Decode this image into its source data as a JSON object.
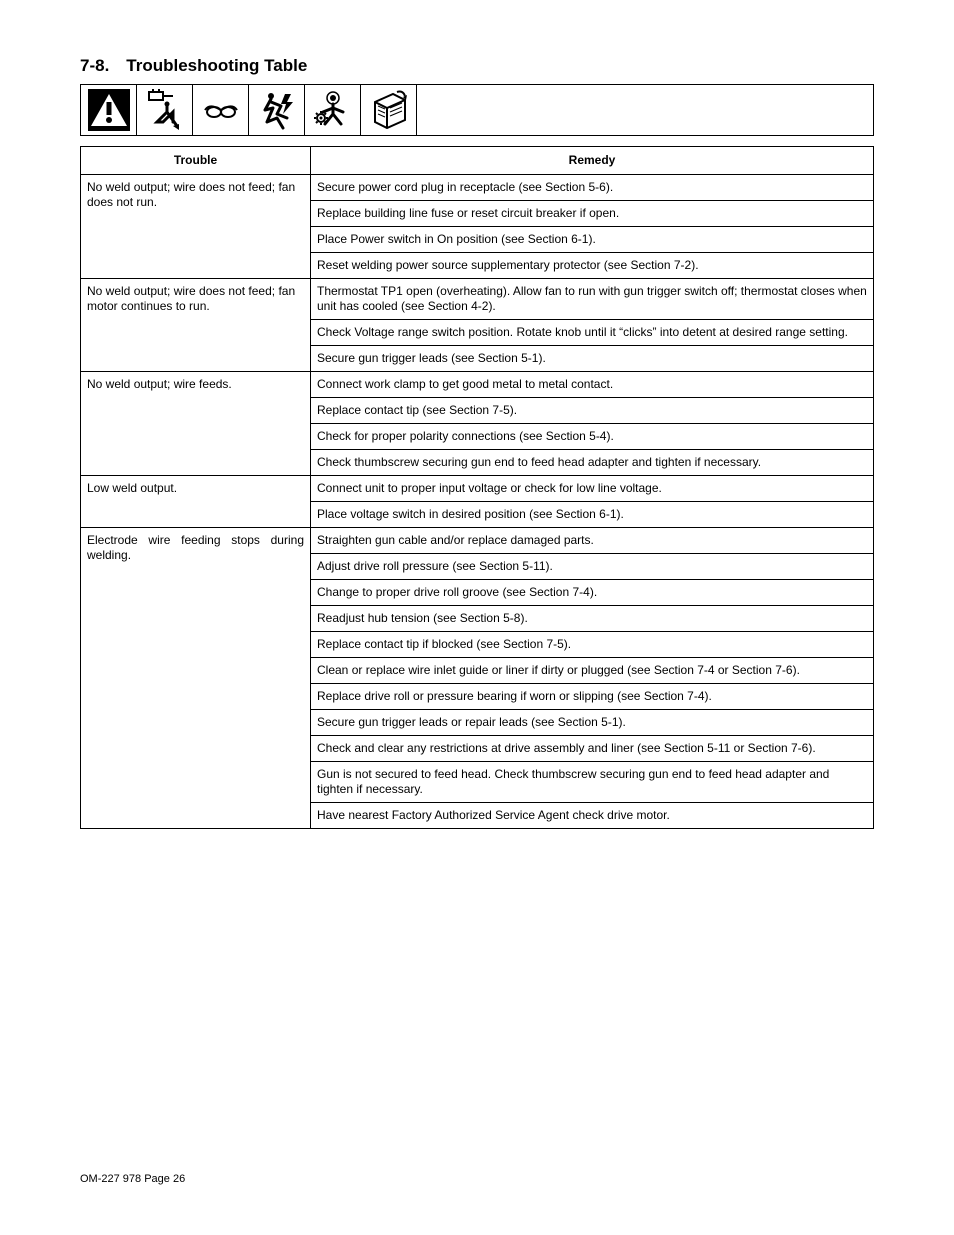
{
  "heading": "7-8. Troubleshooting Table",
  "headers": {
    "trouble": "Trouble",
    "remedy": "Remedy"
  },
  "groups": [
    {
      "trouble": "No weld output; wire does not feed; fan does not run.",
      "trouble_class": "",
      "remedies": [
        "Secure power cord plug in receptacle (see Section 5-6).",
        "Replace building line fuse or reset circuit breaker if open.",
        "Place Power switch in On position (see Section 6-1).",
        "Reset welding power source supplementary protector (see Section 7-2)."
      ]
    },
    {
      "trouble": "No weld output; wire does not feed; fan motor continues to run.",
      "trouble_class": "",
      "remedies": [
        "Thermostat TP1 open (overheating). Allow fan to run with gun trigger switch off; thermostat closes when unit has cooled (see Section 4-2).",
        "Check Voltage range switch position. Rotate knob until it “clicks” into detent at desired range setting.",
        "Secure gun trigger leads (see Section 5-1)."
      ]
    },
    {
      "trouble": "No weld output; wire feeds.",
      "trouble_class": "",
      "remedies": [
        "Connect work clamp to get good metal to metal contact.",
        "Replace contact tip (see Section 7-5).",
        "Check for proper polarity connections (see Section 5-4).",
        "Check thumbscrew securing gun end to feed head adapter and tighten if necessary."
      ]
    },
    {
      "trouble": "Low weld output.",
      "trouble_class": "",
      "remedies": [
        "Connect unit to proper input voltage or check for low line voltage.",
        "Place voltage switch in desired position (see Section 6-1)."
      ]
    },
    {
      "trouble": "Electrode wire feeding stops during welding.",
      "trouble_class": "justify",
      "remedies": [
        "Straighten gun cable and/or replace damaged parts.",
        "Adjust drive roll pressure (see Section 5-11).",
        "Change to proper drive roll groove (see Section 7-4).",
        "Readjust hub tension (see Section 5-8).",
        "Replace contact tip if blocked (see Section 7-5).",
        "Clean or replace wire inlet guide or liner if dirty or plugged (see Section 7-4 or Section 7-6).",
        "Replace drive roll or pressure bearing if worn or slipping (see Section 7-4).",
        "Secure gun trigger leads or repair leads (see Section 5-1).",
        "Check and clear any restrictions at drive assembly and liner (see Section 5-11 or Section 7-6).",
        "Gun is not secured to feed head. Check thumbscrew securing gun end to feed head adapter and tighten if necessary.",
        "Have nearest Factory Authorized Service Agent check drive motor."
      ]
    }
  ],
  "footer": "OM-227 978 Page 26"
}
